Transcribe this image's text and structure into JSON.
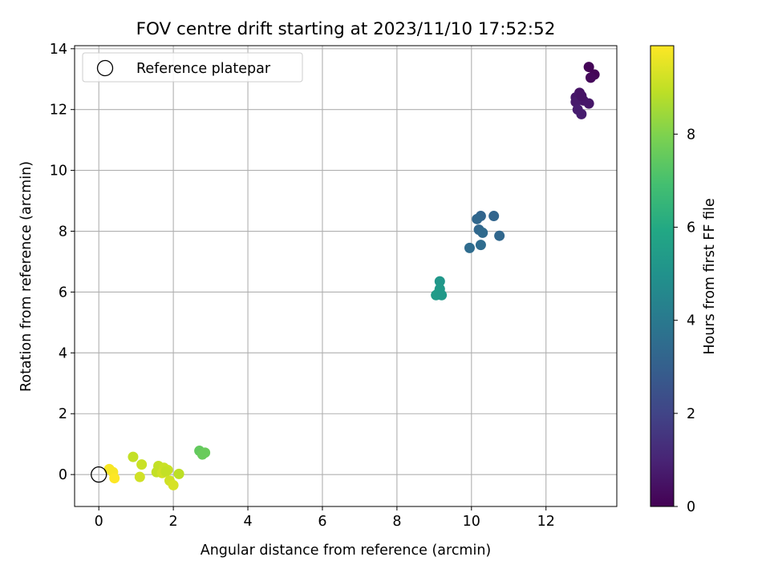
{
  "chart_data": {
    "type": "scatter",
    "title": "FOV centre drift starting at 2023/11/10 17:52:52",
    "xlabel": "Angular distance from reference (arcmin)",
    "ylabel": "Rotation from reference (arcmin)",
    "xlim": [
      -0.65,
      13.9
    ],
    "ylim": [
      -1.05,
      14.1
    ],
    "xticks": [
      0,
      2,
      4,
      6,
      8,
      10,
      12
    ],
    "yticks": [
      0,
      2,
      4,
      6,
      8,
      10,
      12,
      14
    ],
    "grid": true,
    "legend": {
      "placement": "top-left",
      "entries": [
        "Reference platepar"
      ]
    },
    "reference_point": {
      "name": "Reference platepar",
      "x": 0,
      "y": 0,
      "marker": "open-circle"
    },
    "colorbar": {
      "label": "Hours from first FF file",
      "colormap": "viridis",
      "range": [
        0,
        9.9
      ],
      "ticks": [
        0,
        2,
        4,
        6,
        8
      ]
    },
    "points": [
      {
        "x": 13.15,
        "y": 13.4,
        "c": 0.1
      },
      {
        "x": 13.3,
        "y": 13.15,
        "c": 0.1
      },
      {
        "x": 13.2,
        "y": 13.05,
        "c": 0.2
      },
      {
        "x": 12.9,
        "y": 12.55,
        "c": 0.5
      },
      {
        "x": 12.8,
        "y": 12.4,
        "c": 0.6
      },
      {
        "x": 13.0,
        "y": 12.3,
        "c": 0.6
      },
      {
        "x": 12.8,
        "y": 12.25,
        "c": 0.7
      },
      {
        "x": 12.95,
        "y": 12.45,
        "c": 0.5
      },
      {
        "x": 13.15,
        "y": 12.2,
        "c": 0.6
      },
      {
        "x": 12.85,
        "y": 12.0,
        "c": 0.8
      },
      {
        "x": 12.95,
        "y": 11.85,
        "c": 0.8
      },
      {
        "x": 10.25,
        "y": 8.5,
        "c": 3.2
      },
      {
        "x": 10.6,
        "y": 8.5,
        "c": 3.2
      },
      {
        "x": 10.15,
        "y": 8.4,
        "c": 3.3
      },
      {
        "x": 10.2,
        "y": 8.05,
        "c": 3.3
      },
      {
        "x": 10.3,
        "y": 7.95,
        "c": 3.4
      },
      {
        "x": 10.75,
        "y": 7.85,
        "c": 3.3
      },
      {
        "x": 10.25,
        "y": 7.55,
        "c": 3.5
      },
      {
        "x": 9.95,
        "y": 7.45,
        "c": 3.5
      },
      {
        "x": 9.15,
        "y": 6.35,
        "c": 5.2
      },
      {
        "x": 9.15,
        "y": 6.1,
        "c": 5.3
      },
      {
        "x": 9.1,
        "y": 5.95,
        "c": 5.4
      },
      {
        "x": 9.05,
        "y": 5.9,
        "c": 5.4
      },
      {
        "x": 9.2,
        "y": 5.9,
        "c": 5.3
      },
      {
        "x": 2.7,
        "y": 0.78,
        "c": 7.5
      },
      {
        "x": 2.85,
        "y": 0.72,
        "c": 7.6
      },
      {
        "x": 2.78,
        "y": 0.66,
        "c": 7.6
      },
      {
        "x": 0.92,
        "y": 0.58,
        "c": 9.0
      },
      {
        "x": 1.15,
        "y": 0.33,
        "c": 9.1
      },
      {
        "x": 0.28,
        "y": 0.18,
        "c": 9.8
      },
      {
        "x": 0.38,
        "y": 0.08,
        "c": 9.8
      },
      {
        "x": 0.42,
        "y": -0.12,
        "c": 9.9
      },
      {
        "x": 1.1,
        "y": -0.08,
        "c": 9.2
      },
      {
        "x": 1.6,
        "y": 0.28,
        "c": 9.0
      },
      {
        "x": 1.55,
        "y": 0.08,
        "c": 9.0
      },
      {
        "x": 1.75,
        "y": 0.22,
        "c": 9.1
      },
      {
        "x": 1.85,
        "y": 0.15,
        "c": 9.1
      },
      {
        "x": 1.7,
        "y": 0.05,
        "c": 9.2
      },
      {
        "x": 1.8,
        "y": 0.1,
        "c": 9.0
      },
      {
        "x": 2.15,
        "y": 0.02,
        "c": 8.9
      },
      {
        "x": 1.9,
        "y": -0.2,
        "c": 9.2
      },
      {
        "x": 2.0,
        "y": -0.35,
        "c": 9.3
      }
    ]
  }
}
